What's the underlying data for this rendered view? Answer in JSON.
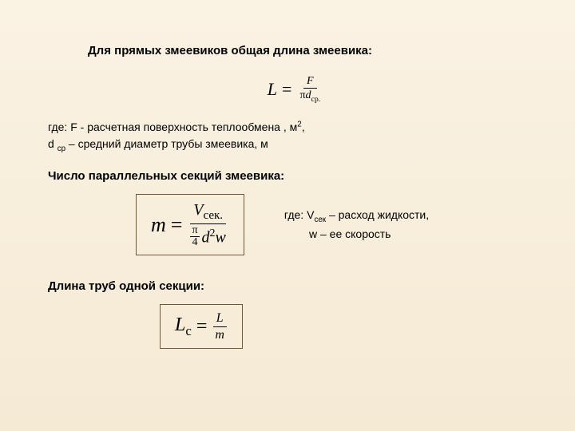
{
  "page": {
    "background_gradient": [
      "#faf2e3",
      "#f5ead4"
    ],
    "text_color": "#000000",
    "heading_font": "Arial",
    "formula_font": "Times New Roman",
    "box_border_color": "#6b5a3a"
  },
  "heading1": "Для прямых змеевиков общая длина змеевика:",
  "formula1": {
    "lhs": "L",
    "eq": "=",
    "num": "F",
    "den_pi": "π",
    "den_d": "d",
    "den_sub": "ср."
  },
  "note1_line1_a": "где:  F - расчетная поверхность теплообмена , м",
  "note1_line1_sup": "2",
  "note1_line1_b": ",",
  "note1_line2_a": "d ",
  "note1_line2_sub": "ср",
  "note1_line2_b": " – средний диаметр трубы змеевика, м",
  "heading2": "Число параллельных секций  змеевика:",
  "formula2": {
    "lhs": "m",
    "eq": "=",
    "num_V": "V",
    "num_sub": "сек.",
    "den_pi": "π",
    "den_4": "4",
    "den_d": "d",
    "den_sup": "2",
    "den_w": "w"
  },
  "aside2_line1_a": "где: V",
  "aside2_line1_sub": "сек",
  "aside2_line1_b": " – расход жидкости,",
  "aside2_line2": "        w – ее скорость",
  "heading3": "Длина труб одной секции:",
  "formula3": {
    "lhs_L": "L",
    "lhs_sub": "с",
    "eq": "=",
    "num": "L",
    "den": "m"
  }
}
